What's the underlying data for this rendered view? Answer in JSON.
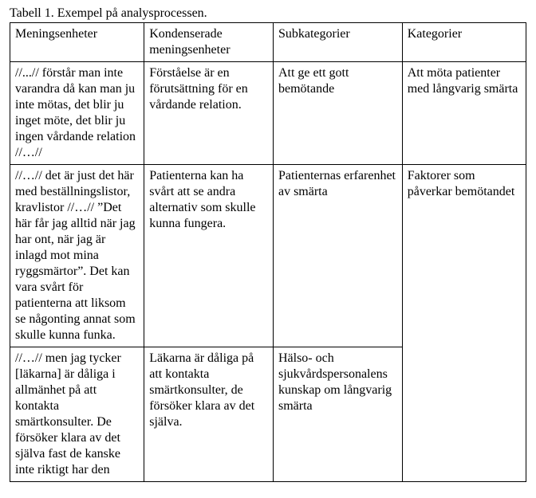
{
  "caption": "Tabell 1. Exempel på analysprocessen.",
  "headers": {
    "c1": "Meningsenheter",
    "c2": "Kondenserade meningsenheter",
    "c3": "Subkategorier",
    "c4": "Kategorier"
  },
  "rows": {
    "r1": {
      "c1": "//...// förstår man inte varandra då kan man ju inte mötas, det blir ju inget möte, det blir ju ingen vårdande relation //…//",
      "c2": "Förståelse är en förutsättning för en vårdande relation.",
      "c3": "Att ge ett gott bemötande",
      "c4": "Att möta patienter med långvarig smärta"
    },
    "r2": {
      "c1": "//…// det är just det här med beställningslistor, kravlistor //…// ”Det här får jag alltid när jag har ont, när jag är inlagd mot mina ryggsmärtor”. Det kan vara svårt för patienterna att liksom se någonting annat som skulle kunna funka.",
      "c2": "Patienterna kan ha svårt att se andra alternativ som skulle kunna fungera.",
      "c3": "Patienternas erfarenhet av smärta",
      "c4": "Faktorer som påverkar bemötandet"
    },
    "r3": {
      "c1": "//…// men jag tycker [läkarna] är dåliga i allmänhet på att kontakta smärtkonsulter. De försöker klara av det själva fast de kanske inte riktigt har den",
      "c2": "Läkarna är dåliga på att kontakta smärtkonsulter, de försöker klara av det själva.",
      "c3": "Hälso- och sjukvårdspersonalens kunskap om långvarig smärta"
    }
  }
}
